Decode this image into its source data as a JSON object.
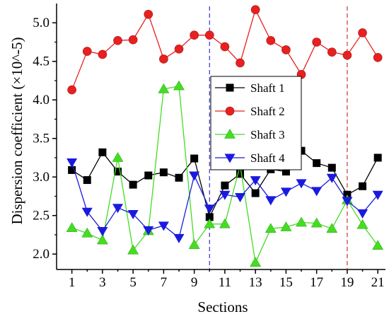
{
  "chart_data": {
    "type": "line",
    "xlabel": "Sections",
    "ylabel": "Dispersion coefficient (×10^-5)",
    "xlim": [
      0,
      21.5
    ],
    "ylim": [
      1.8,
      5.25
    ],
    "xticks": [
      1,
      3,
      5,
      7,
      9,
      11,
      13,
      15,
      17,
      19,
      21
    ],
    "yticks": [
      2.0,
      2.5,
      3.0,
      3.5,
      4.0,
      4.5,
      5.0
    ],
    "ytick_labels": [
      "2.0",
      "2.5",
      "3.0",
      "3.5",
      "4.0",
      "4.5",
      "5.0"
    ],
    "x": [
      1,
      2,
      3,
      4,
      5,
      6,
      7,
      8,
      9,
      10,
      11,
      12,
      13,
      14,
      15,
      16,
      17,
      18,
      19,
      20,
      21
    ],
    "series": [
      {
        "name": "Shaft 1",
        "color": "#000000",
        "marker": "square",
        "values": [
          3.09,
          2.96,
          3.32,
          3.07,
          2.9,
          3.02,
          3.06,
          2.99,
          3.24,
          2.48,
          2.89,
          3.04,
          2.79,
          3.1,
          3.07,
          3.34,
          3.18,
          3.12,
          2.77,
          2.88,
          3.25
        ]
      },
      {
        "name": "Shaft 2",
        "color": "#e82020",
        "marker": "circle",
        "values": [
          4.13,
          4.63,
          4.59,
          4.77,
          4.78,
          5.11,
          4.53,
          4.66,
          4.84,
          4.84,
          4.69,
          4.48,
          5.17,
          4.77,
          4.65,
          4.33,
          4.75,
          4.62,
          4.58,
          4.87,
          4.55
        ]
      },
      {
        "name": "Shaft 3",
        "color": "#44dd22",
        "marker": "triangle-up",
        "values": [
          2.34,
          2.27,
          2.18,
          3.25,
          2.05,
          2.3,
          4.14,
          4.18,
          2.12,
          2.39,
          2.39,
          3.15,
          1.89,
          2.33,
          2.35,
          2.41,
          2.4,
          2.33,
          2.7,
          2.38,
          2.11
        ]
      },
      {
        "name": "Shaft 4",
        "color": "#1a1adf",
        "marker": "triangle-down",
        "values": [
          3.19,
          2.55,
          2.3,
          2.6,
          2.52,
          2.31,
          2.37,
          2.21,
          3.02,
          2.59,
          2.77,
          2.74,
          2.96,
          2.7,
          2.81,
          2.92,
          2.82,
          2.99,
          2.69,
          2.53,
          2.77
        ]
      }
    ],
    "reference_lines": [
      {
        "x": 10,
        "color": "#3333cc",
        "style": "dashed"
      },
      {
        "x": 19,
        "color": "#cc3333",
        "style": "dashed"
      }
    ],
    "legend_position": "center-right",
    "grid": false
  }
}
